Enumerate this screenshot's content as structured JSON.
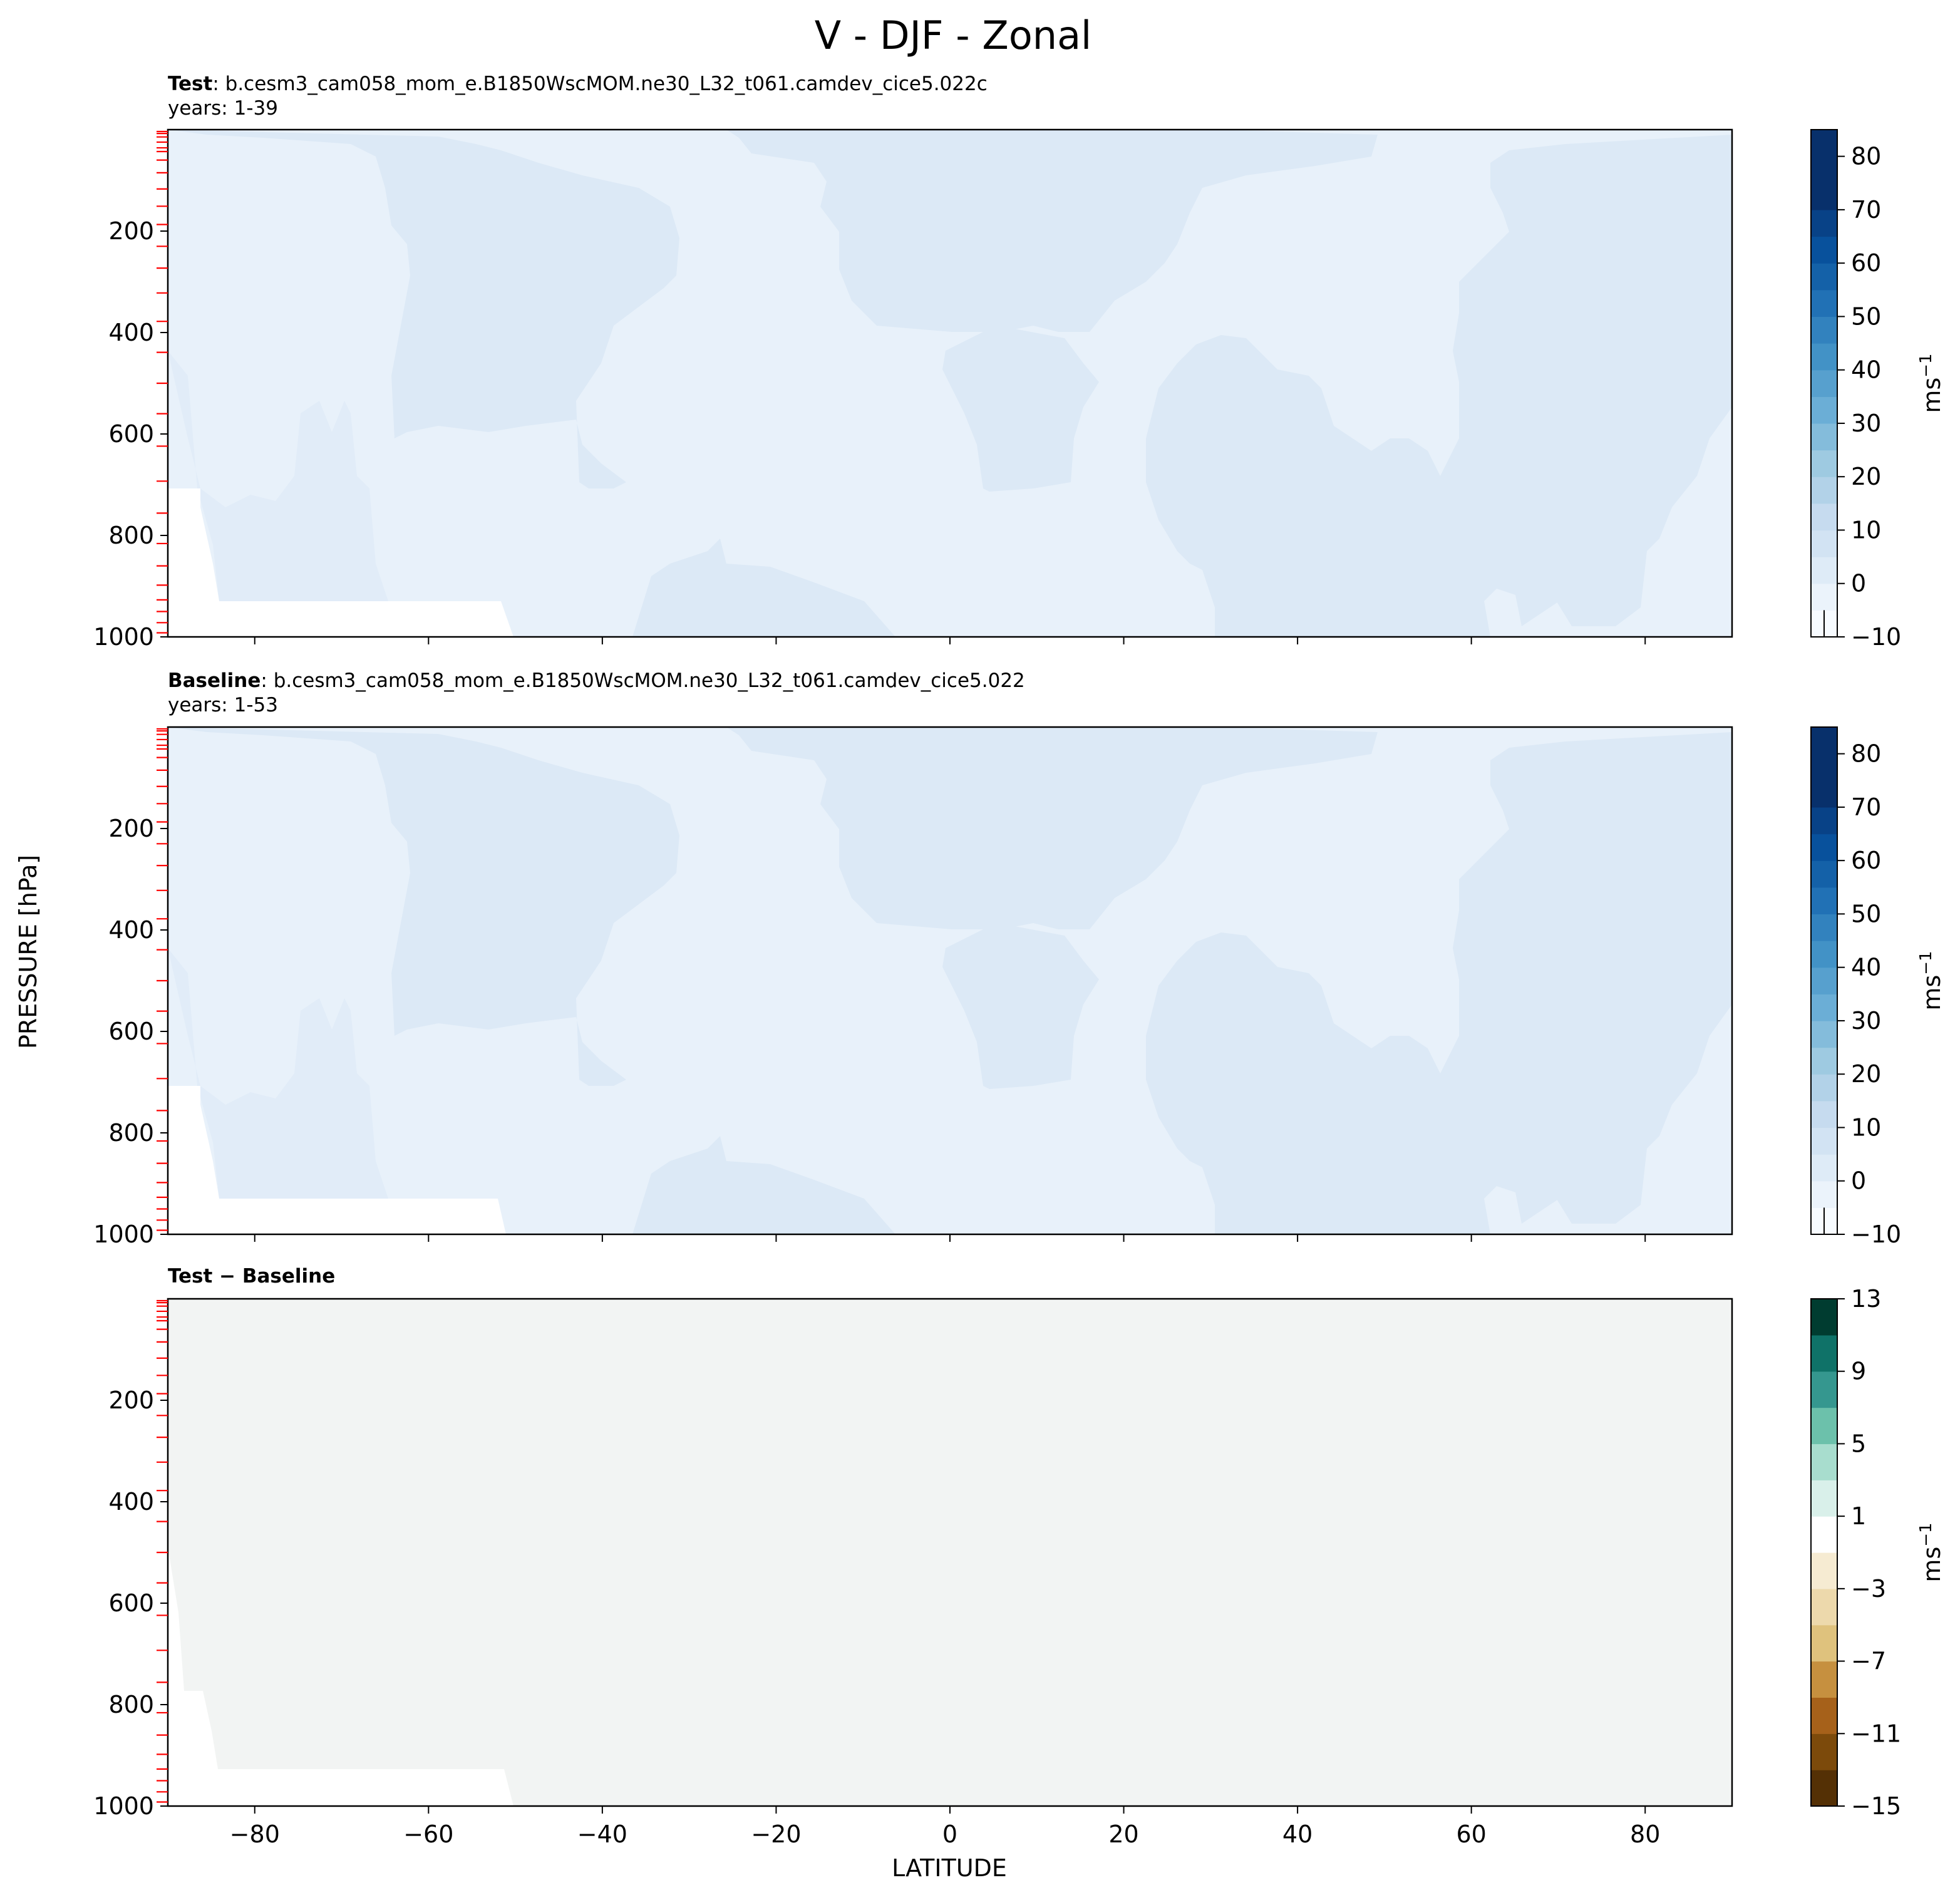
{
  "figure": {
    "title": "V - DJF - Zonal",
    "xlabel": "LATITUDE",
    "ylabel": "PRESSURE [hPa]"
  },
  "chart_data": [
    {
      "type": "heatmap",
      "panel": "test",
      "label_bold": "Test",
      "case_name": "b.cesm3_cam058_mom_e.B1850WscMOM.ne30_L32_t061.camdev_cice5.022c",
      "years": "years: 1-39",
      "xlim": [
        -90,
        90
      ],
      "ylim": [
        1000,
        0
      ],
      "x_ticks": [
        -80,
        -60,
        -40,
        -20,
        0,
        20,
        40,
        60,
        80
      ],
      "y_ticks": [
        200,
        400,
        600,
        800,
        1000
      ],
      "colorbar": {
        "label": "ms",
        "label_sup": "−1",
        "levels": [
          -10,
          -5,
          0,
          5,
          10,
          15,
          20,
          25,
          30,
          35,
          40,
          45,
          50,
          55,
          60,
          65,
          70,
          75,
          80,
          85
        ],
        "tick_values": [
          -10,
          0,
          10,
          20,
          30,
          40,
          50,
          60,
          70,
          80
        ],
        "tick_labels": [
          "−10",
          "0",
          "10",
          "20",
          "30",
          "40",
          "50",
          "60",
          "70",
          "80"
        ],
        "colors": [
          "#f7fbff",
          "#ebf3fb",
          "#deebf7",
          "#d2e3f3",
          "#c6dbef",
          "#b2d2e8",
          "#9ecae1",
          "#84bcdb",
          "#6baed6",
          "#57a0ce",
          "#4292c6",
          "#3282be",
          "#2171b5",
          "#1461a8",
          "#08519c",
          "#084287",
          "#08306b",
          "#08306b",
          "#08306b"
        ],
        "map_colors": {
          "bin_minus5_0": "#f7fbff",
          "bin_0_5": "#e8f1fa",
          "bin_5_10": "#dce9f6"
        }
      }
    },
    {
      "type": "heatmap",
      "panel": "baseline",
      "label_bold": "Baseline",
      "case_name": "b.cesm3_cam058_mom_e.B1850WscMOM.ne30_L32_t061.camdev_cice5.022",
      "years": "years: 1-53",
      "xlim": [
        -90,
        90
      ],
      "ylim": [
        1000,
        0
      ],
      "x_ticks": [
        -80,
        -60,
        -40,
        -20,
        0,
        20,
        40,
        60,
        80
      ],
      "y_ticks": [
        200,
        400,
        600,
        800,
        1000
      ],
      "colorbar": {
        "label": "ms",
        "label_sup": "−1",
        "tick_values": [
          -10,
          0,
          10,
          20,
          30,
          40,
          50,
          60,
          70,
          80
        ],
        "tick_labels": [
          "−10",
          "0",
          "10",
          "20",
          "30",
          "40",
          "50",
          "60",
          "70",
          "80"
        ]
      }
    },
    {
      "type": "heatmap",
      "panel": "difference",
      "label_bold": "Test − Baseline",
      "xlim": [
        -90,
        90
      ],
      "ylim": [
        1000,
        0
      ],
      "x_ticks": [
        -80,
        -60,
        -40,
        -20,
        0,
        20,
        40,
        60,
        80
      ],
      "y_ticks": [
        200,
        400,
        600,
        800,
        1000
      ],
      "field_color": "#f2f4f3",
      "colorbar": {
        "label": "ms",
        "label_sup": "−1",
        "levels": [
          -15,
          -13,
          -11,
          -9,
          -7,
          -5,
          -3,
          -1,
          1,
          3,
          5,
          7,
          9,
          11,
          13
        ],
        "tick_values": [
          -15,
          -11,
          -7,
          -3,
          1,
          5,
          9,
          13
        ],
        "tick_labels": [
          "−15",
          "−11",
          "−7",
          "−3",
          "1",
          "5",
          "9",
          "13"
        ],
        "colors": [
          "#543005",
          "#7c4a0b",
          "#a6611a",
          "#c6903f",
          "#dfc27d",
          "#edd9ac",
          "#f6ebd2",
          "#ffffff",
          "#d9f0ea",
          "#a8ddce",
          "#6cc1ab",
          "#35978f",
          "#0f7268",
          "#003c30"
        ]
      }
    }
  ],
  "x_tick_labels": [
    "−80",
    "−60",
    "−40",
    "−20",
    "0",
    "20",
    "40",
    "60",
    "80"
  ],
  "y_tick_labels": [
    "200",
    "400",
    "600",
    "800",
    "1000"
  ],
  "model_level_marker_color": "#ff0000",
  "model_levels_hpa": [
    3.6,
    7.6,
    14.4,
    24.6,
    35.9,
    43.2,
    60,
    85,
    117,
    151,
    187,
    230,
    273,
    322,
    378,
    439,
    500,
    560,
    624,
    693,
    756,
    816,
    860,
    898,
    927,
    950,
    972,
    992
  ]
}
